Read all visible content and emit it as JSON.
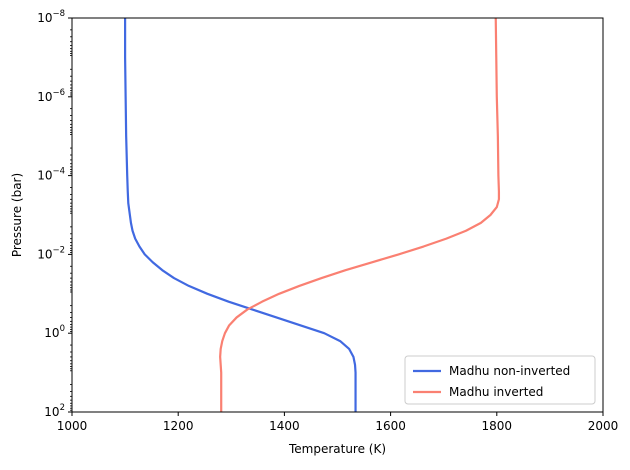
{
  "chart_data": {
    "type": "line",
    "xlabel": "Temperature (K)",
    "ylabel": "Pressure (bar)",
    "xlim": [
      1000,
      2000
    ],
    "ylim_log10": [
      2,
      -8
    ],
    "y_scale": "log",
    "y_inverted": true,
    "x_ticks": [
      {
        "value": 1000,
        "label": "1000"
      },
      {
        "value": 1200,
        "label": "1200"
      },
      {
        "value": 1400,
        "label": "1400"
      },
      {
        "value": 1600,
        "label": "1600"
      },
      {
        "value": 1800,
        "label": "1800"
      },
      {
        "value": 2000,
        "label": "2000"
      }
    ],
    "y_ticks": [
      {
        "log10": 2,
        "base": "10",
        "exp": "2"
      },
      {
        "log10": 0,
        "base": "10",
        "exp": "0"
      },
      {
        "log10": -2,
        "base": "10",
        "exp": "−2"
      },
      {
        "log10": -4,
        "base": "10",
        "exp": "−4"
      },
      {
        "log10": -6,
        "base": "10",
        "exp": "−6"
      },
      {
        "log10": -8,
        "base": "10",
        "exp": "−8"
      }
    ],
    "grid": false,
    "legend_position": "bottom-right",
    "series": [
      {
        "name": "Madhu non-inverted",
        "color": "#4169e1",
        "points": [
          [
            1534,
            2
          ],
          [
            1534,
            1.5
          ],
          [
            1534,
            1.0
          ],
          [
            1533,
            0.8
          ],
          [
            1530,
            0.6
          ],
          [
            1522,
            0.4
          ],
          [
            1505,
            0.2
          ],
          [
            1475,
            0
          ],
          [
            1430,
            -0.2
          ],
          [
            1385,
            -0.4
          ],
          [
            1340,
            -0.6
          ],
          [
            1295,
            -0.8
          ],
          [
            1255,
            -1.0
          ],
          [
            1220,
            -1.2
          ],
          [
            1192,
            -1.4
          ],
          [
            1170,
            -1.6
          ],
          [
            1152,
            -1.8
          ],
          [
            1137,
            -2.0
          ],
          [
            1127,
            -2.2
          ],
          [
            1119,
            -2.4
          ],
          [
            1114,
            -2.6
          ],
          [
            1111,
            -2.8
          ],
          [
            1109,
            -3.0
          ],
          [
            1106,
            -3.3
          ],
          [
            1105,
            -3.6
          ],
          [
            1104,
            -4.0
          ],
          [
            1103,
            -4.5
          ],
          [
            1102,
            -5.0
          ],
          [
            1101,
            -6.0
          ],
          [
            1100,
            -7.0
          ],
          [
            1100,
            -8
          ]
        ]
      },
      {
        "name": "Madhu inverted",
        "color": "#fa8072",
        "points": [
          [
            1281,
            2
          ],
          [
            1281,
            1.5
          ],
          [
            1281,
            1.0
          ],
          [
            1280,
            0.8
          ],
          [
            1279,
            0.6
          ],
          [
            1280,
            0.4
          ],
          [
            1283,
            0.2
          ],
          [
            1288,
            0
          ],
          [
            1296,
            -0.2
          ],
          [
            1310,
            -0.4
          ],
          [
            1330,
            -0.6
          ],
          [
            1358,
            -0.8
          ],
          [
            1390,
            -1.0
          ],
          [
            1428,
            -1.2
          ],
          [
            1470,
            -1.4
          ],
          [
            1515,
            -1.6
          ],
          [
            1565,
            -1.8
          ],
          [
            1615,
            -2.0
          ],
          [
            1662,
            -2.2
          ],
          [
            1705,
            -2.4
          ],
          [
            1742,
            -2.6
          ],
          [
            1770,
            -2.8
          ],
          [
            1788,
            -3.0
          ],
          [
            1800,
            -3.2
          ],
          [
            1804,
            -3.4
          ],
          [
            1804,
            -3.6
          ],
          [
            1803,
            -4.0
          ],
          [
            1802,
            -5.0
          ],
          [
            1800,
            -6.0
          ],
          [
            1799,
            -7.0
          ],
          [
            1798,
            -8
          ]
        ]
      }
    ]
  }
}
